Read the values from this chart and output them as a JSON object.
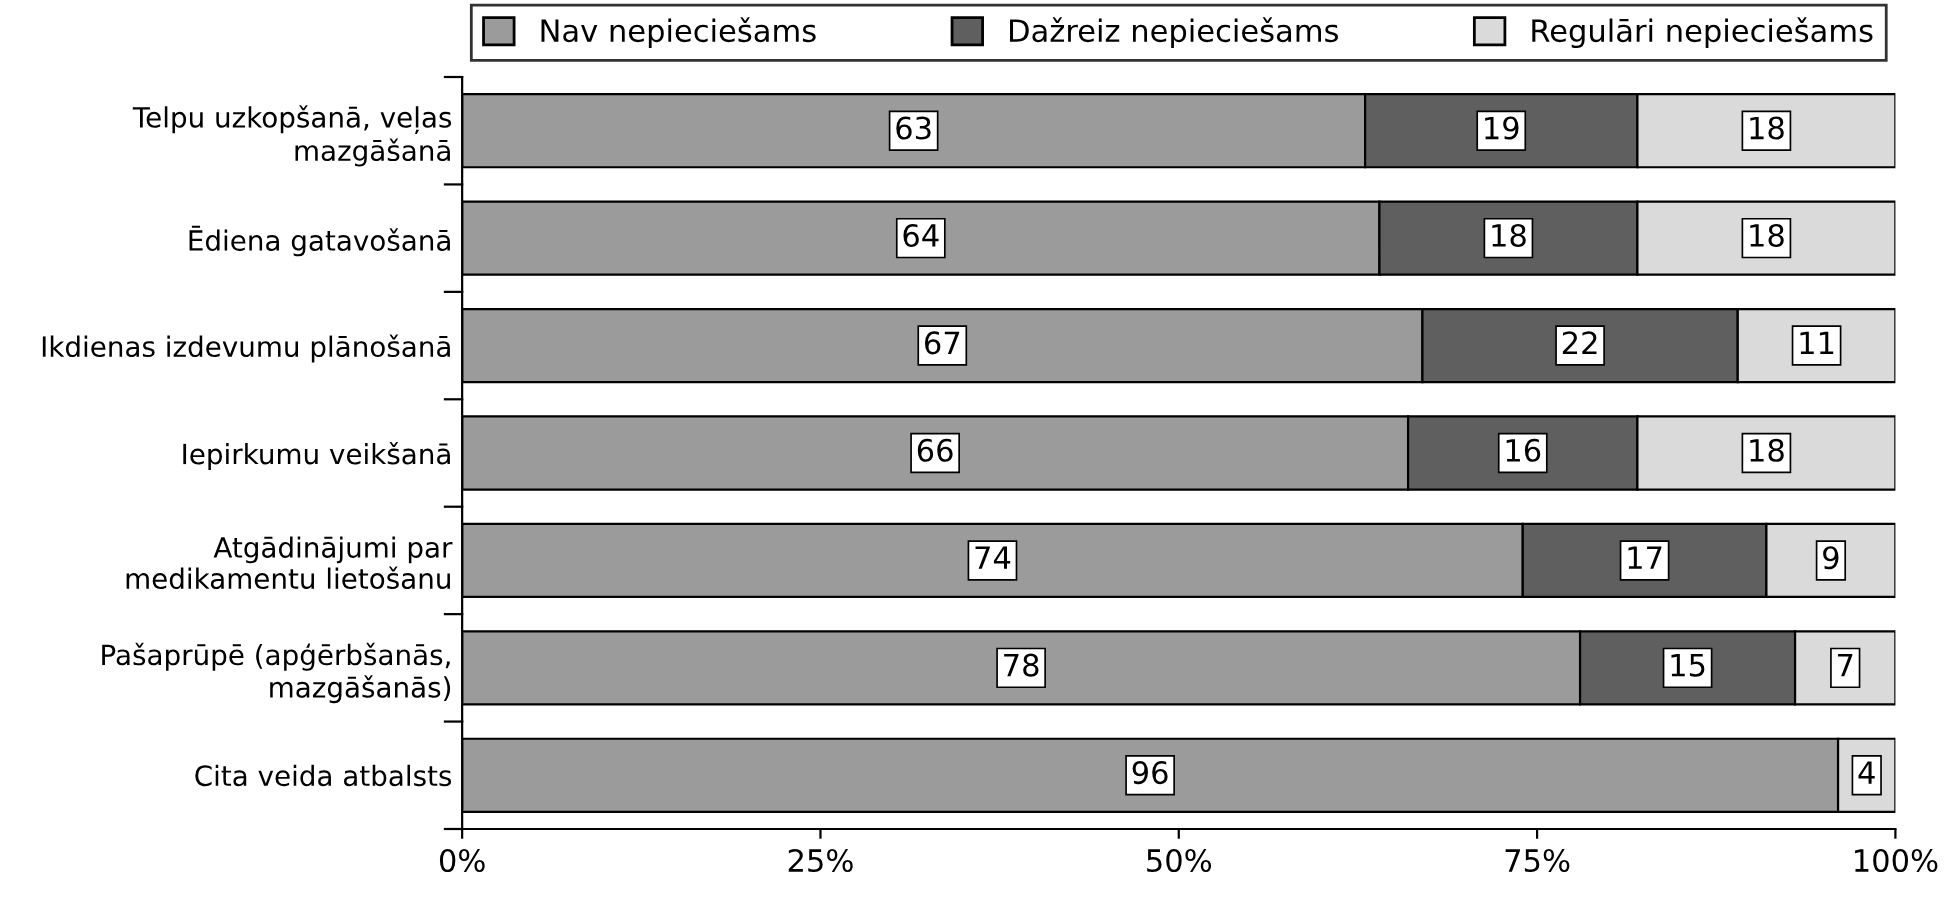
{
  "chart_data": {
    "type": "bar",
    "orientation": "horizontal",
    "stacked": true,
    "categories": [
      "Telpu uzkopšanā, veļas\nmazgāšanā",
      "Ēdiena gatavošanā",
      "Ikdienas izdevumu plānošanā",
      "Iepirkumu veikšanā",
      "Atgādinājumi par\nmedikamentu lietošanu",
      "Pašaprūpē (apģērbšanās,\nmazgāšanās)",
      "Cita veida atbalsts"
    ],
    "series": [
      {
        "name": "Nav nepieciešams",
        "color": "#9b9b9b",
        "values": [
          63,
          64,
          67,
          66,
          74,
          78,
          96
        ]
      },
      {
        "name": "Dažreiz nepieciešams",
        "color": "#5f5f5f",
        "values": [
          19,
          18,
          22,
          16,
          17,
          15,
          null
        ]
      },
      {
        "name": "Regulāri nepieciešams",
        "color": "#dadada",
        "values": [
          18,
          18,
          11,
          18,
          9,
          7,
          4
        ]
      }
    ],
    "xlim": [
      0,
      100
    ],
    "xticks": [
      {
        "value": 0,
        "label": "0%"
      },
      {
        "value": 25,
        "label": "25%"
      },
      {
        "value": 50,
        "label": "50%"
      },
      {
        "value": 75,
        "label": "75%"
      },
      {
        "value": 100,
        "label": "100%"
      }
    ],
    "data_labels": true,
    "legend": "top",
    "grid": false
  }
}
